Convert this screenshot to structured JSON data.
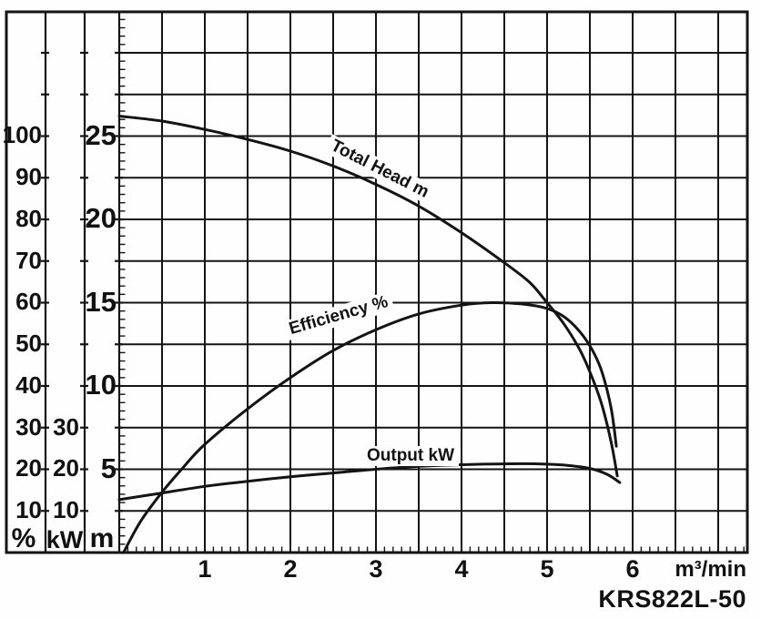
{
  "title": "KRS822L-50",
  "chart_data": {
    "type": "line",
    "title": "KRS822L-50",
    "grid": true,
    "legend_position": "labels-on-curves",
    "x_axis": {
      "label": "m³/min",
      "ticks": [
        1,
        2,
        3,
        4,
        5,
        6
      ],
      "range": [
        0,
        7.3
      ],
      "gridline_step": 0.5,
      "minor_tick_step": 0.1
    },
    "y_axes": [
      {
        "id": "percent",
        "label": "%",
        "ticks": [
          10,
          20,
          30,
          40,
          50,
          60,
          70,
          80,
          90,
          100
        ],
        "units_per_gridline": 10,
        "range": [
          0,
          130
        ]
      },
      {
        "id": "kw",
        "label": "kW",
        "ticks": [
          10,
          20,
          30
        ],
        "units_per_gridline": 10,
        "range": [
          0,
          130
        ]
      },
      {
        "id": "m",
        "label": "m",
        "ticks": [
          5,
          10,
          15,
          20,
          25
        ],
        "units_per_gridline": 2.5,
        "range": [
          0,
          32.5
        ],
        "minor_tick_step": 0.5
      }
    ],
    "series": [
      {
        "name": "Total Head m",
        "axis": "m",
        "points": [
          [
            0,
            26.2
          ],
          [
            0.5,
            25.9
          ],
          [
            1,
            25.4
          ],
          [
            1.5,
            24.8
          ],
          [
            2,
            24.1
          ],
          [
            2.5,
            23.2
          ],
          [
            3,
            22.1
          ],
          [
            3.5,
            20.8
          ],
          [
            4,
            19.2
          ],
          [
            4.5,
            17.4
          ],
          [
            4.8,
            16.2
          ],
          [
            5,
            15.0
          ],
          [
            5.2,
            13.7
          ],
          [
            5.4,
            12.0
          ],
          [
            5.55,
            10.2
          ],
          [
            5.65,
            8.7
          ],
          [
            5.75,
            6.6
          ],
          [
            5.82,
            4.6
          ]
        ]
      },
      {
        "name": "Efficiency %",
        "axis": "percent",
        "points": [
          [
            0.05,
            0
          ],
          [
            0.25,
            7.5
          ],
          [
            0.5,
            14.5
          ],
          [
            0.75,
            20.5
          ],
          [
            1,
            26
          ],
          [
            1.5,
            34.5
          ],
          [
            2,
            42
          ],
          [
            2.5,
            48.5
          ],
          [
            3,
            53.5
          ],
          [
            3.5,
            57.3
          ],
          [
            4,
            59.4
          ],
          [
            4.35,
            60
          ],
          [
            4.7,
            59.7
          ],
          [
            5,
            58.6
          ],
          [
            5.2,
            56.6
          ],
          [
            5.4,
            52.6
          ],
          [
            5.55,
            47.8
          ],
          [
            5.65,
            42.8
          ],
          [
            5.75,
            34.5
          ],
          [
            5.81,
            25.5
          ]
        ]
      },
      {
        "name": "Output kW",
        "axis": "kw",
        "points": [
          [
            0,
            12.7
          ],
          [
            0.5,
            14.3
          ],
          [
            1,
            15.9
          ],
          [
            1.5,
            17.1
          ],
          [
            2,
            18.2
          ],
          [
            2.5,
            19.1
          ],
          [
            3,
            20.0
          ],
          [
            3.5,
            20.7
          ],
          [
            4,
            21.1
          ],
          [
            4.5,
            21.3
          ],
          [
            4.9,
            21.3
          ],
          [
            5.2,
            21.0
          ],
          [
            5.5,
            20.2
          ],
          [
            5.7,
            18.8
          ],
          [
            5.85,
            16.8
          ]
        ]
      }
    ]
  }
}
